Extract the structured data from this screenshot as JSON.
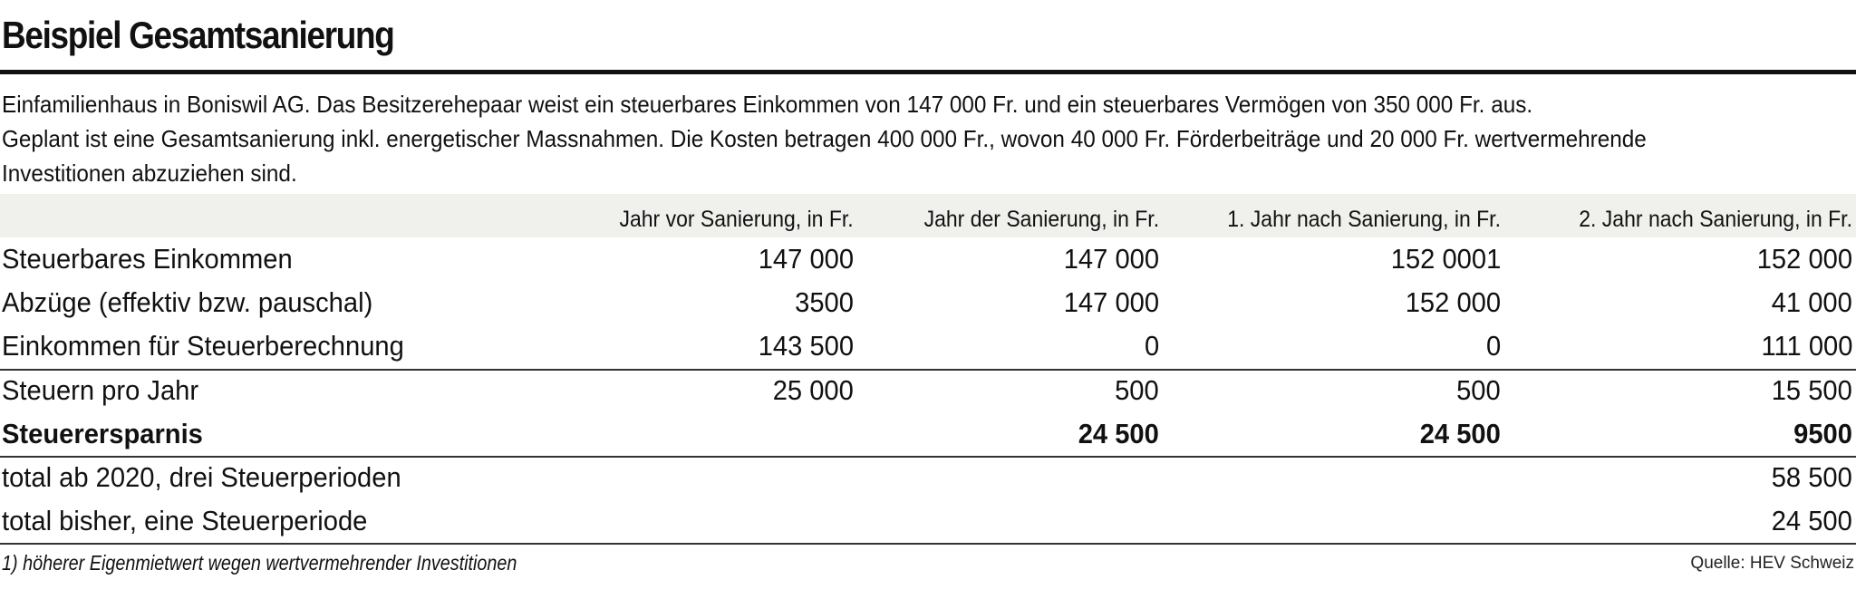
{
  "title": "Beispiel Gesamtsanierung",
  "intro": {
    "line1": "Einfamilienhaus in Boniswil AG. Das Besitzerehepaar weist ein steuerbares Einkommen von 147 000 Fr. und ein steuerbares Vermögen von 350 000 Fr. aus.",
    "line2": "Geplant ist eine Gesamtsanierung inkl. energetischer Massnahmen. Die Kosten betragen 400 000 Fr., wovon 40 000 Fr. Förderbeiträge und 20 000 Fr. wertvermehrende",
    "line3": "Investitionen abzuziehen sind."
  },
  "table": {
    "columns": [
      "Jahr vor Sanierung, in Fr.",
      "Jahr der Sanierung, in Fr.",
      "1. Jahr nach Sanierung, in Fr.",
      "2. Jahr nach Sanierung, in Fr."
    ],
    "rows": [
      {
        "label": "Steuerbares Einkommen",
        "values": [
          "147 000",
          "147 000",
          "152 0001",
          "152 000"
        ]
      },
      {
        "label": "Abzüge (effektiv bzw. pauschal)",
        "values": [
          "3500",
          "147 000",
          "152 000",
          "41 000"
        ]
      },
      {
        "label": "Einkommen für Steuerberechnung",
        "values": [
          "143 500",
          "0",
          "0",
          "111 000"
        ]
      },
      {
        "label": "Steuern pro Jahr",
        "values": [
          "25 000",
          "500",
          "500",
          "15 500"
        ]
      },
      {
        "label": "Steuerersparnis",
        "values": [
          "",
          "24 500",
          "24 500",
          "9500"
        ]
      },
      {
        "label": "total ab 2020, drei Steuerperioden",
        "values": [
          "",
          "",
          "",
          "58 500"
        ]
      },
      {
        "label": "total bisher, eine Steuerperiode",
        "values": [
          "",
          "",
          "",
          "24 500"
        ]
      }
    ]
  },
  "footnote": "1) höherer Eigenmietwert wegen wertvermehrender Investitionen",
  "source": "Quelle: HEV Schweiz",
  "colors": {
    "text": "#111111",
    "header_band": "#f0f0ed",
    "rule": "#333333"
  }
}
